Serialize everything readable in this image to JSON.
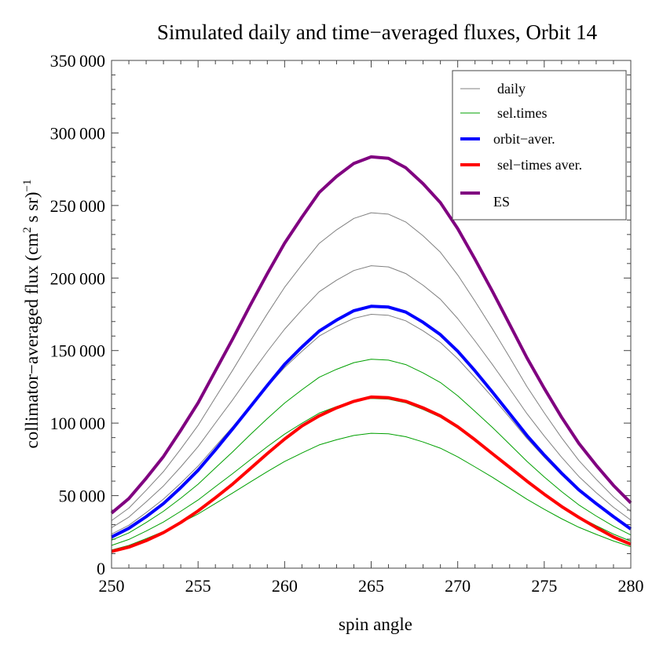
{
  "chart_data": {
    "type": "line",
    "title": "Simulated daily and time−averaged fluxes, Orbit 14",
    "xlabel": "spin angle",
    "ylabel": {
      "main": "collimator−averaged flux (cm",
      "sup1": "2",
      "mid": " s sr)",
      "sup2": "−1"
    },
    "xlim": [
      250,
      280
    ],
    "ylim": [
      0,
      350000
    ],
    "xticks": [
      250,
      255,
      260,
      265,
      270,
      275,
      280
    ],
    "yticks": [
      0,
      50000,
      100000,
      150000,
      200000,
      250000,
      300000,
      350000
    ],
    "ytick_labels": [
      "0",
      "50 000",
      "100 000",
      "150 000",
      "200 000",
      "250 000",
      "300 000",
      "350 000"
    ],
    "grid": false,
    "legend_position": "top-right",
    "legend": [
      {
        "label": "daily",
        "color": "#808080",
        "width": 1
      },
      {
        "label": "sel.times",
        "color": "#00a000",
        "width": 1
      },
      {
        "label": "orbit−aver.",
        "color": "#0000ff",
        "width": 4
      },
      {
        "label": "sel−times aver.",
        "color": "#ff0000",
        "width": 4
      },
      {
        "label": "ES",
        "color": "#800080",
        "width": 4
      }
    ],
    "x": [
      250,
      251,
      252,
      253,
      254,
      255,
      256,
      257,
      258,
      259,
      260,
      261,
      262,
      263,
      264,
      265,
      266,
      267,
      268,
      269,
      270,
      271,
      272,
      273,
      274,
      275,
      276,
      277,
      278,
      279,
      280
    ],
    "series": [
      {
        "name": "daily",
        "color": "#808080",
        "width": 1,
        "values": [
          32800,
          41400,
          53700,
          66600,
          82100,
          98500,
          117600,
          136500,
          156300,
          175400,
          193600,
          209200,
          223900,
          233200,
          241100,
          245000,
          244000,
          238600,
          229100,
          217800,
          202100,
          184000,
          165100,
          145300,
          125200,
          107100,
          89900,
          74200,
          61300,
          49200,
          39000
        ]
      },
      {
        "name": "daily",
        "color": "#808080",
        "width": 1,
        "values": [
          27900,
          35200,
          45700,
          56700,
          69800,
          83800,
          100100,
          116100,
          133000,
          149300,
          164700,
          178100,
          190600,
          198500,
          205200,
          208500,
          207700,
          203100,
          195000,
          185400,
          172000,
          156600,
          140500,
          123600,
          106500,
          91100,
          76500,
          63200,
          52100,
          41900,
          33200
        ]
      },
      {
        "name": "daily",
        "color": "#808080",
        "width": 1,
        "values": [
          23500,
          29600,
          38300,
          47600,
          58600,
          70400,
          84000,
          97500,
          111700,
          125300,
          138300,
          149500,
          160000,
          166600,
          172200,
          175000,
          174300,
          170500,
          163600,
          155600,
          144400,
          131400,
          118000,
          103800,
          89400,
          76500,
          64200,
          53000,
          43800,
          35200,
          27800
        ]
      },
      {
        "name": "sel.times",
        "color": "#00a000",
        "width": 1,
        "values": [
          19300,
          24300,
          31500,
          39200,
          48200,
          57900,
          69100,
          80200,
          91900,
          103100,
          113800,
          123000,
          131600,
          137100,
          141700,
          144000,
          143400,
          140300,
          134600,
          128000,
          118800,
          108100,
          97100,
          85400,
          73600,
          62900,
          52800,
          43600,
          36000,
          28900,
          22900
        ]
      },
      {
        "name": "sel.times",
        "color": "#00a000",
        "width": 1,
        "values": [
          15700,
          19800,
          25600,
          31800,
          39200,
          47000,
          56200,
          65200,
          74600,
          83800,
          92400,
          99900,
          106900,
          111400,
          115100,
          117000,
          116500,
          114000,
          109400,
          104000,
          96500,
          87900,
          78900,
          69400,
          59800,
          51100,
          42900,
          35500,
          29300,
          23500,
          18600
        ]
      },
      {
        "name": "sel.times",
        "color": "#00a000",
        "width": 1,
        "values": [
          12500,
          15700,
          20400,
          25300,
          31200,
          37400,
          44600,
          51800,
          59300,
          66600,
          73500,
          79400,
          85000,
          88500,
          91500,
          93000,
          92600,
          90600,
          87000,
          82700,
          76700,
          69800,
          62700,
          55100,
          47500,
          40600,
          34100,
          28200,
          23300,
          18700,
          14800
        ]
      },
      {
        "name": "orbit−aver.",
        "color": "#0000ff",
        "width": 4,
        "values": [
          21500,
          27500,
          35500,
          44500,
          55500,
          67500,
          81500,
          96000,
          111000,
          126000,
          140500,
          152500,
          163500,
          171000,
          177500,
          180500,
          180000,
          176500,
          169500,
          161000,
          149500,
          136000,
          121500,
          106500,
          91500,
          78000,
          65500,
          54000,
          44500,
          35500,
          27000
        ]
      },
      {
        "name": "sel−times aver.",
        "color": "#ff0000",
        "width": 4,
        "values": [
          11500,
          14500,
          19000,
          24500,
          31500,
          39500,
          48500,
          58000,
          68500,
          79000,
          89000,
          98000,
          105000,
          110500,
          115000,
          118000,
          117500,
          115000,
          110500,
          105000,
          97500,
          88500,
          79000,
          69500,
          60000,
          51000,
          42500,
          35000,
          28000,
          21500,
          16500
        ]
      },
      {
        "name": "ES",
        "color": "#800080",
        "width": 4,
        "values": [
          38000,
          48000,
          62000,
          77000,
          95000,
          114000,
          136000,
          158000,
          181000,
          203000,
          224000,
          242000,
          259000,
          270000,
          279000,
          283500,
          282500,
          276000,
          265000,
          252000,
          234000,
          213000,
          191000,
          168000,
          145000,
          124000,
          104000,
          86000,
          71000,
          57000,
          45000
        ]
      }
    ]
  }
}
